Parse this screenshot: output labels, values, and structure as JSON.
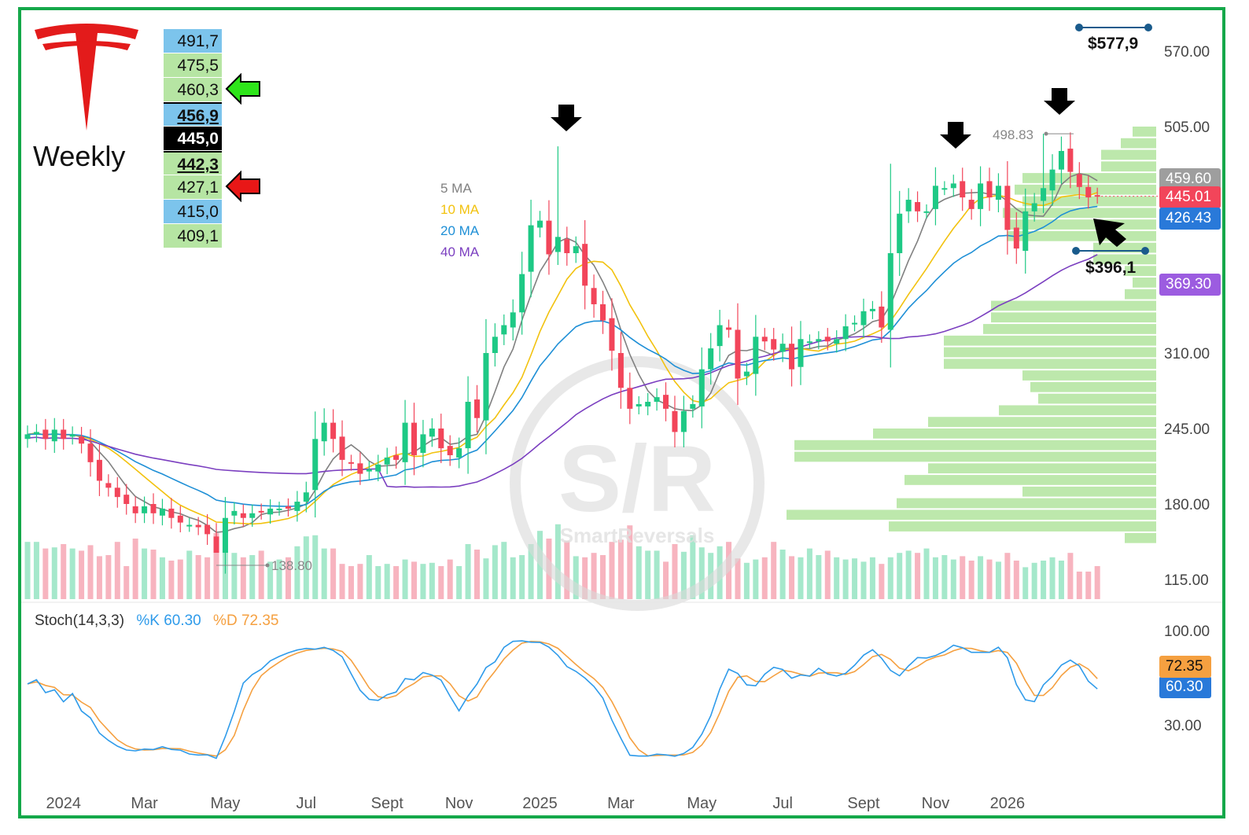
{
  "header": {
    "timeframe": "Weekly",
    "logo": "tesla-logo"
  },
  "levels": [
    {
      "value": "491,7",
      "style": "blue"
    },
    {
      "value": "475,5",
      "style": "green"
    },
    {
      "value": "460,3",
      "style": "green"
    },
    {
      "value": "456,9",
      "style": "blue-ul"
    },
    {
      "value": "445,0",
      "style": "black"
    },
    {
      "value": "442,3",
      "style": "green-ul"
    },
    {
      "value": "427,1",
      "style": "green"
    },
    {
      "value": "415,0",
      "style": "blue"
    },
    {
      "value": "409,1",
      "style": "green"
    }
  ],
  "level_arrows": [
    {
      "level": "460,3",
      "color": "#2ee51a",
      "icon": "left-arrow-icon"
    },
    {
      "level": "427,1",
      "color": "#e81717",
      "icon": "left-arrow-icon"
    }
  ],
  "ma_legend": [
    {
      "label": "5 MA",
      "color": "#808080"
    },
    {
      "label": "10 MA",
      "color": "#f2c20f"
    },
    {
      "label": "20 MA",
      "color": "#1e8fd6"
    },
    {
      "label": "40 MA",
      "color": "#7b3fc0"
    }
  ],
  "targets": {
    "upper": "$577,9",
    "lower": "$396,1"
  },
  "price_tags": [
    {
      "label": "459.60",
      "color": "#9e9e9e"
    },
    {
      "label": "445.01",
      "color": "#f2455a"
    },
    {
      "label": "426.43",
      "color": "#2979d9"
    },
    {
      "label": "369.30",
      "color": "#9c5ce0"
    }
  ],
  "stoch": {
    "label": "Stoch(14,3,3)",
    "k_label": "%K 60.30",
    "d_label": "%D 72.35",
    "k_color": "#2f9bea",
    "d_color": "#f5a040",
    "d_tag": "72.35",
    "k_tag": "60.30",
    "yticks": [
      "100.00",
      "30.00"
    ]
  },
  "watermark": {
    "big": "S/R",
    "small": "SmartReversals"
  },
  "colors": {
    "up": "#1ec985",
    "down": "#f2455a",
    "vol_up": "#a5e8cb",
    "vol_down": "#f7b4bf",
    "profile": "#b6e5a3"
  },
  "chart_data": {
    "type": "candlestick",
    "title": "",
    "timeframe": "weekly",
    "y_axis_ticks": [
      570,
      505,
      310,
      245,
      180,
      115
    ],
    "ylim": [
      115,
      575
    ],
    "x_tick_labels": [
      "2024",
      "Mar",
      "May",
      "Jul",
      "Sept",
      "Nov",
      "2025",
      "Mar",
      "May",
      "Jul",
      "Sept",
      "Nov",
      "2026"
    ],
    "x_tick_weeks": [
      4,
      13,
      22,
      31,
      40,
      48,
      57,
      66,
      75,
      84,
      93,
      101,
      109
    ],
    "annotations": [
      {
        "text": "498.83",
        "type": "high"
      },
      {
        "text": "138.80",
        "type": "low"
      }
    ],
    "close": [
      240,
      242,
      236,
      244,
      236,
      240,
      232,
      216,
      200,
      194,
      186,
      180,
      172,
      178,
      172,
      176,
      168,
      164,
      162,
      160,
      154,
      138,
      168,
      174,
      168,
      172,
      173,
      176,
      176,
      176,
      182,
      190,
      236,
      250,
      236,
      218,
      215,
      206,
      210,
      214,
      220,
      218,
      250,
      222,
      240,
      245,
      228,
      222,
      228,
      268,
      254,
      310,
      324,
      334,
      345,
      378,
      420,
      424,
      395,
      410,
      396,
      402,
      368,
      352,
      338,
      312,
      280,
      262,
      266,
      268,
      272,
      262,
      242,
      260,
      266,
      296,
      314,
      334,
      330,
      288,
      294,
      324,
      320,
      313,
      318,
      296,
      322,
      320,
      322,
      320,
      322,
      333,
      336,
      346,
      348,
      332,
      396,
      430,
      442,
      432,
      432,
      454,
      452,
      456,
      444,
      434,
      456,
      444,
      454,
      416,
      400,
      432,
      439,
      452,
      468,
      484,
      466,
      453,
      444,
      445
    ],
    "volume": [
      0.52,
      0.52,
      0.46,
      0.47,
      0.5,
      0.46,
      0.44,
      0.49,
      0.39,
      0.4,
      0.52,
      0.3,
      0.55,
      0.46,
      0.45,
      0.38,
      0.35,
      0.36,
      0.44,
      0.4,
      0.38,
      0.6,
      0.45,
      0.42,
      0.38,
      0.4,
      0.44,
      0.34,
      0.36,
      0.38,
      0.48,
      0.57,
      0.58,
      0.46,
      0.46,
      0.32,
      0.3,
      0.32,
      0.4,
      0.3,
      0.32,
      0.3,
      0.36,
      0.34,
      0.32,
      0.33,
      0.3,
      0.36,
      0.3,
      0.5,
      0.45,
      0.37,
      0.49,
      0.52,
      0.38,
      0.4,
      0.5,
      0.62,
      0.55,
      0.68,
      0.53,
      0.39,
      0.38,
      0.42,
      0.4,
      0.52,
      0.54,
      0.67,
      0.48,
      0.44,
      0.44,
      0.34,
      0.5,
      0.43,
      0.58,
      0.47,
      0.42,
      0.48,
      0.52,
      0.37,
      0.33,
      0.36,
      0.38,
      0.52,
      0.45,
      0.39,
      0.38,
      0.46,
      0.4,
      0.44,
      0.38,
      0.36,
      0.37,
      0.34,
      0.38,
      0.32,
      0.38,
      0.42,
      0.44,
      0.42,
      0.46,
      0.38,
      0.4,
      0.36,
      0.39,
      0.35,
      0.39,
      0.36,
      0.34,
      0.42,
      0.35,
      0.29,
      0.33,
      0.35,
      0.38,
      0.35,
      0.42,
      0.25,
      0.25,
      0.3
    ]
  }
}
